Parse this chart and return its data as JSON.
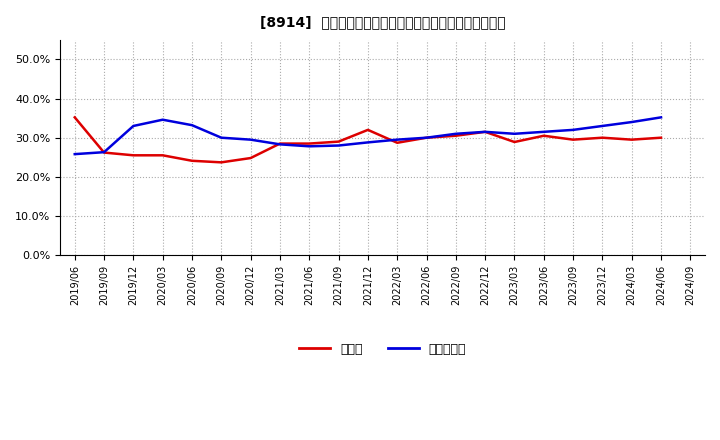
{
  "title": "[8914]  現預金、有利子負債の総資産に対する比率の推移",
  "ylim": [
    0.0,
    0.55
  ],
  "yticks": [
    0.0,
    0.1,
    0.2,
    0.3,
    0.4,
    0.5
  ],
  "background_color": "#ffffff",
  "grid_color": "#aaaaaa",
  "legend_labels": [
    "現預金",
    "有利子負債"
  ],
  "line_colors": [
    "#dd0000",
    "#0000dd"
  ],
  "dates": [
    "2019/06",
    "2019/09",
    "2019/12",
    "2020/03",
    "2020/06",
    "2020/09",
    "2020/12",
    "2021/03",
    "2021/06",
    "2021/09",
    "2021/12",
    "2022/03",
    "2022/06",
    "2022/09",
    "2022/12",
    "2023/03",
    "2023/06",
    "2023/09",
    "2023/12",
    "2024/03",
    "2024/06",
    "2024/09"
  ],
  "cash": [
    0.352,
    0.262,
    0.255,
    0.255,
    0.241,
    0.237,
    0.248,
    0.285,
    0.285,
    0.29,
    0.32,
    0.287,
    0.3,
    0.305,
    0.315,
    0.289,
    0.305,
    0.295,
    0.3,
    0.295,
    0.3,
    null
  ],
  "debt": [
    0.258,
    0.263,
    0.33,
    0.346,
    0.332,
    0.3,
    0.295,
    0.283,
    0.278,
    0.28,
    0.288,
    0.295,
    0.3,
    0.31,
    0.315,
    0.31,
    0.315,
    0.32,
    0.33,
    0.34,
    0.352,
    null
  ]
}
